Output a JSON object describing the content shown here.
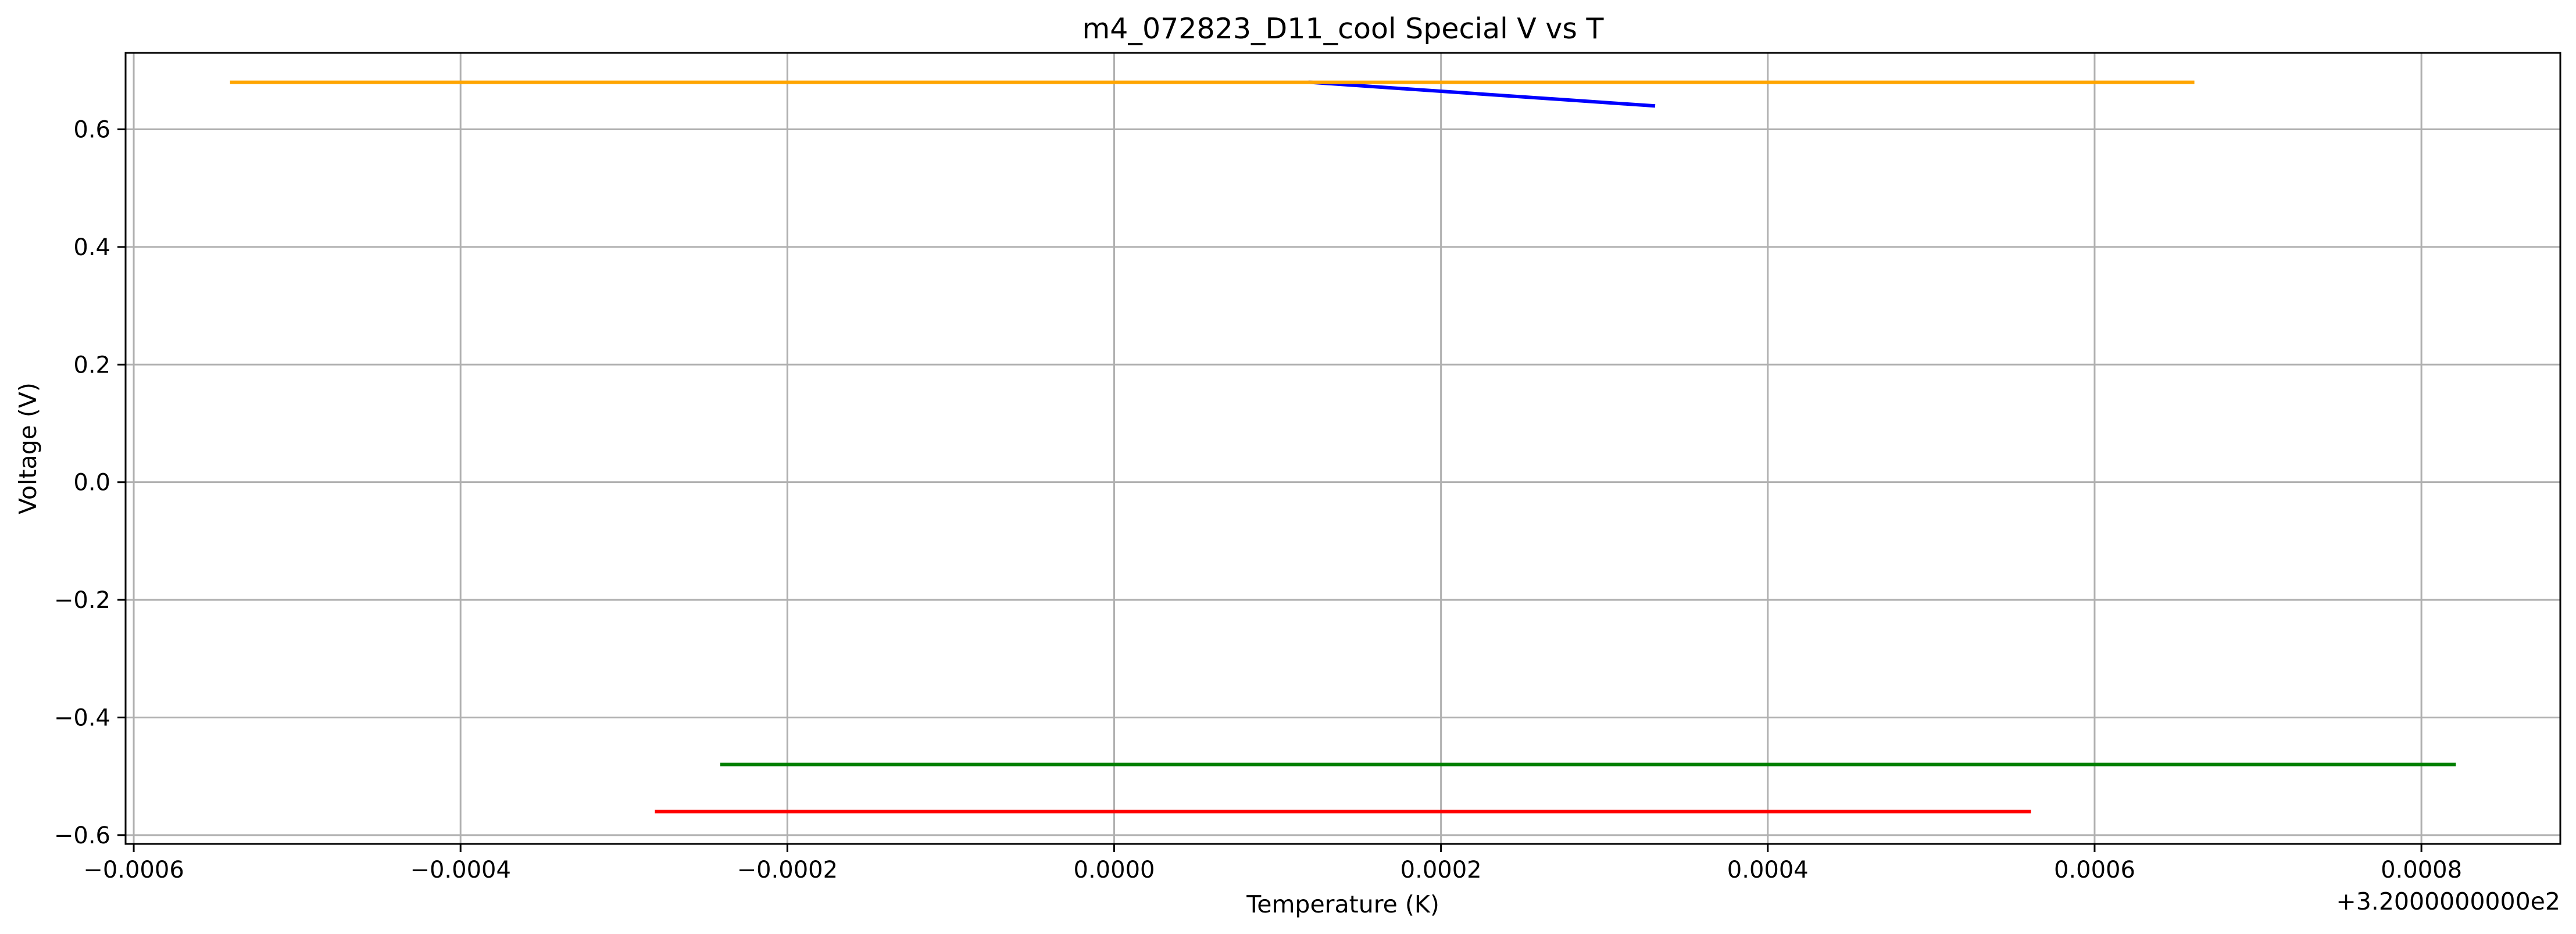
{
  "chart_data": {
    "type": "line",
    "title": "m4_072823_D11_cool Special V vs T",
    "xlabel": "Temperature (K)",
    "ylabel": "Voltage (V)",
    "x_offset_label": "+3.2000000000e2",
    "xlim": [
      -0.000605,
      0.000885
    ],
    "ylim": [
      -0.615,
      0.73
    ],
    "xticks": [
      -0.0006,
      -0.0004,
      -0.0002,
      0.0,
      0.0002,
      0.0004,
      0.0006,
      0.0008
    ],
    "xtick_labels": [
      "−0.0006",
      "−0.0004",
      "−0.0002",
      "0.0000",
      "0.0002",
      "0.0004",
      "0.0006",
      "0.0008"
    ],
    "yticks": [
      0.6,
      0.4,
      0.2,
      0.0,
      -0.2,
      -0.4,
      -0.6
    ],
    "ytick_labels": [
      "0.6",
      "0.4",
      "0.2",
      "0.0",
      "−0.2",
      "−0.4",
      "−0.6"
    ],
    "grid": true,
    "legend": false,
    "series": [
      {
        "color": "#0000ff",
        "x": [
          0.00012,
          0.00033
        ],
        "y": [
          0.68,
          0.64
        ]
      },
      {
        "color": "#ffa500",
        "x": [
          -0.00054,
          0.00066
        ],
        "y": [
          0.68,
          0.68
        ]
      },
      {
        "color": "#008000",
        "x": [
          -0.00024,
          0.00082
        ],
        "y": [
          -0.48,
          -0.48
        ]
      },
      {
        "color": "#ff0000",
        "x": [
          -0.00028,
          0.00056
        ],
        "y": [
          -0.56,
          -0.56
        ]
      }
    ]
  }
}
